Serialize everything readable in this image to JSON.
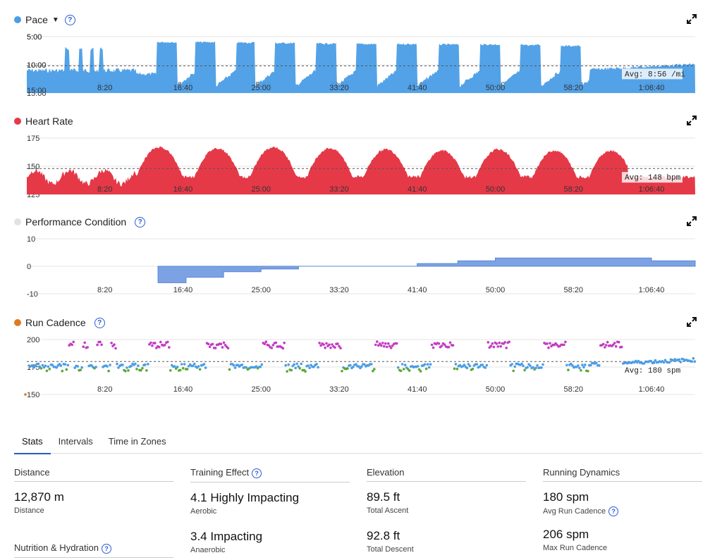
{
  "charts": {
    "pace": {
      "title": "Pace",
      "avg_label": "Avg: 8:56 /mi",
      "color": "#4a9de6",
      "y_ticks": [
        "5:00",
        "10:00",
        "15:00"
      ],
      "avg_value_min": 8.93
    },
    "hr": {
      "title": "Heart Rate",
      "avg_label": "Avg: 148 bpm",
      "color": "#e53948",
      "y_ticks": [
        "175",
        "150",
        "125"
      ],
      "avg_value": 148
    },
    "perf": {
      "title": "Performance Condition",
      "color": "#6f98e0",
      "y_ticks": [
        "10",
        "0",
        "-10"
      ]
    },
    "cadence": {
      "title": "Run Cadence",
      "avg_label": "Avg: 180 spm",
      "color": "#e07a22",
      "y_ticks": [
        "200",
        "175",
        "150"
      ],
      "avg_value": 180
    }
  },
  "x_ticks": [
    "8:20",
    "16:40",
    "25:00",
    "33:20",
    "41:40",
    "50:00",
    "58:20",
    "1:06:40"
  ],
  "chart_data": [
    {
      "type": "area",
      "title": "Pace",
      "ylabel": "min/mi",
      "ylim": [
        15,
        5
      ],
      "x_unit": "elapsed time",
      "x_ticks": [
        "8:20",
        "16:40",
        "25:00",
        "33:20",
        "41:40",
        "50:00",
        "58:20",
        "1:06:40"
      ],
      "intervals": [
        {
          "start": "13:50",
          "end": "16:00",
          "pace": "5:50"
        },
        {
          "start": "18:00",
          "end": "20:10",
          "pace": "5:50"
        },
        {
          "start": "22:20",
          "end": "24:20",
          "pace": "5:55"
        },
        {
          "start": "26:30",
          "end": "28:40",
          "pace": "6:00"
        },
        {
          "start": "30:50",
          "end": "33:00",
          "pace": "6:05"
        },
        {
          "start": "35:10",
          "end": "37:20",
          "pace": "6:10"
        },
        {
          "start": "39:30",
          "end": "41:40",
          "pace": "6:10"
        },
        {
          "start": "44:00",
          "end": "46:10",
          "pace": "6:15"
        },
        {
          "start": "48:20",
          "end": "50:30",
          "pace": "6:15"
        },
        {
          "start": "52:40",
          "end": "54:50",
          "pace": "6:20"
        },
        {
          "start": "57:00",
          "end": "59:10",
          "pace": "6:30"
        }
      ],
      "avg": "8:56 /mi"
    },
    {
      "type": "area",
      "title": "Heart Rate",
      "ylabel": "bpm",
      "ylim": [
        125,
        175
      ],
      "peaks_bpm": [
        167,
        166,
        165,
        166,
        165,
        164,
        163,
        164,
        163,
        163,
        163,
        164
      ],
      "avg": 148
    },
    {
      "type": "area",
      "title": "Performance Condition",
      "ylim": [
        -10,
        10
      ],
      "steps": [
        {
          "t": "14:00",
          "v": -6
        },
        {
          "t": "17:00",
          "v": -4
        },
        {
          "t": "21:00",
          "v": -2
        },
        {
          "t": "25:00",
          "v": -1
        },
        {
          "t": "29:00",
          "v": 0
        },
        {
          "t": "33:20",
          "v": 0
        },
        {
          "t": "41:40",
          "v": 1
        },
        {
          "t": "46:00",
          "v": 2
        },
        {
          "t": "50:00",
          "v": 3
        },
        {
          "t": "1:06:40",
          "v": 2
        },
        {
          "t": "1:11:00",
          "v": 2
        }
      ]
    },
    {
      "type": "scatter",
      "title": "Run Cadence",
      "ylabel": "spm",
      "ylim": [
        150,
        200
      ],
      "avg": 180,
      "series_colors": {
        "normal": "#4a9de6",
        "high": "#c23cc2",
        "low": "#5aa832"
      }
    }
  ],
  "tabs": [
    "Stats",
    "Intervals",
    "Time in Zones"
  ],
  "stats": {
    "distance": {
      "header": "Distance",
      "value": "12,870 m",
      "label": "Distance"
    },
    "nutrition": {
      "header": "Nutrition & Hydration"
    },
    "training": {
      "header": "Training Effect",
      "value1": "4.1 Highly Impacting",
      "label1": "Aerobic",
      "value2": "3.4 Impacting",
      "label2": "Anaerobic"
    },
    "elevation": {
      "header": "Elevation",
      "value1": "89.5 ft",
      "label1": "Total Ascent",
      "value2": "92.8 ft",
      "label2": "Total Descent"
    },
    "dynamics": {
      "header": "Running Dynamics",
      "value1": "180 spm",
      "label1": "Avg Run Cadence",
      "value2": "206 spm",
      "label2": "Max Run Cadence"
    }
  }
}
